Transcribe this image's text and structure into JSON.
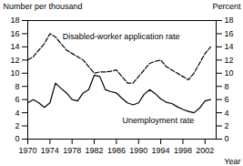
{
  "chart_data": {
    "type": "line",
    "xlabel": "Year",
    "ylabel": "Number per thousand",
    "y2label": "Percent",
    "x": [
      1970,
      1971,
      1972,
      1973,
      1974,
      1975,
      1976,
      1977,
      1978,
      1979,
      1980,
      1981,
      1982,
      1983,
      1984,
      1985,
      1986,
      1987,
      1988,
      1989,
      1990,
      1991,
      1992,
      1993,
      1994,
      1995,
      1996,
      1997,
      1998,
      1999,
      2000,
      2001,
      2002,
      2003
    ],
    "series": [
      {
        "name": "Disabled-worker application rate",
        "color": "#000000",
        "line_style": "dashed",
        "values": [
          12.0,
          12.5,
          13.5,
          14.5,
          16.0,
          15.5,
          14.5,
          13.5,
          13.0,
          12.5,
          12.0,
          11.0,
          10.0,
          10.2,
          10.2,
          10.3,
          10.5,
          9.5,
          8.5,
          8.5,
          9.5,
          10.5,
          11.5,
          11.8,
          12.0,
          11.0,
          10.5,
          10.0,
          9.5,
          9.0,
          10.0,
          11.5,
          13.0,
          14.0
        ]
      },
      {
        "name": "Unemployment rate",
        "color": "#000000",
        "line_style": "solid",
        "axis": "y2",
        "values": [
          5.5,
          6.0,
          5.5,
          4.8,
          5.5,
          8.5,
          7.7,
          7.0,
          6.0,
          5.8,
          7.0,
          7.5,
          9.7,
          9.5,
          7.5,
          7.2,
          7.0,
          6.2,
          5.5,
          5.2,
          5.5,
          6.8,
          7.5,
          6.9,
          6.1,
          5.6,
          5.4,
          4.9,
          4.5,
          4.2,
          4.0,
          4.7,
          5.8,
          6.0
        ]
      }
    ],
    "xlim": [
      1970,
      2004
    ],
    "xticks": [
      1970,
      1974,
      1978,
      1982,
      1986,
      1990,
      1994,
      1998,
      2002
    ],
    "ylim": [
      0,
      18
    ],
    "yticks": [
      0,
      2,
      4,
      6,
      8,
      10,
      12,
      14,
      16,
      18
    ],
    "y2lim": [
      0,
      18
    ],
    "y2ticks": [
      0,
      2,
      4,
      6,
      8,
      10,
      12,
      14,
      16,
      18
    ],
    "grid": false
  }
}
